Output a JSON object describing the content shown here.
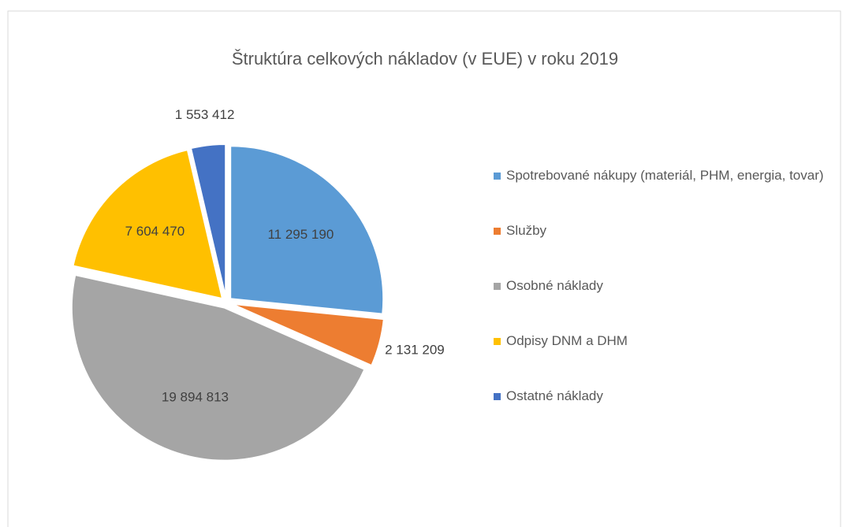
{
  "chart_data": {
    "type": "pie",
    "title": "Štruktúra celkových nákladov (v EUE) v roku 2019",
    "categories": [
      "Spotrebované nákupy (materiál, PHM, energia, tovar)",
      "Služby",
      "Osobné náklady",
      "Odpisy DNM a DHM",
      "Ostatné náklady"
    ],
    "values": [
      11295190,
      2131209,
      19894813,
      7604470,
      1553412
    ],
    "value_labels": [
      "11 295 190",
      "2 131 209",
      "19 894 813",
      "7 604 470",
      "1 553 412"
    ],
    "colors": [
      "#5b9bd5",
      "#ed7d31",
      "#a5a5a5",
      "#ffc000",
      "#4472c4"
    ],
    "legend": "right"
  }
}
